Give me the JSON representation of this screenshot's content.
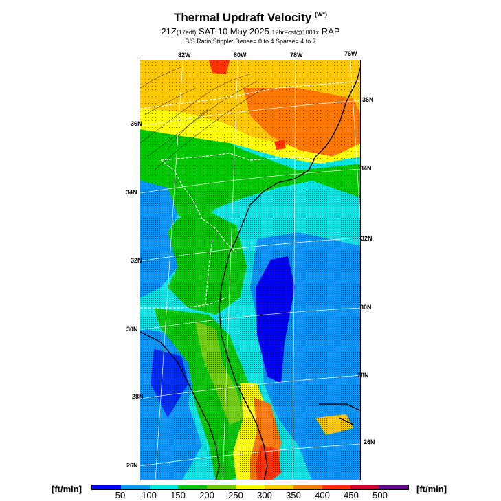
{
  "header": {
    "title": "Thermal Updraft Velocity",
    "title_unit": "(W*)",
    "valid_time": "21Z",
    "valid_local": "(17edt)",
    "date": "SAT 10 May 2025",
    "forecast": "12hrFcst@1001z",
    "model": "RAP",
    "stipple_note": "B/S Ratio Stipple:  Dense= 0 to 4  Sparse= 4 to 7"
  },
  "map": {
    "lon_labels": [
      "82W",
      "80W",
      "78W",
      "76W"
    ],
    "lat_labels_left": [
      "36N",
      "34N",
      "32N",
      "30N",
      "28N",
      "26N"
    ],
    "lat_labels_right": [
      "36N",
      "34N",
      "32N",
      "30N",
      "28N",
      "26N"
    ]
  },
  "colorbar": {
    "unit_left": "[ft/min]",
    "unit_right": "[ft/min]",
    "ticks": [
      "50",
      "100",
      "150",
      "200",
      "250",
      "300",
      "350",
      "400",
      "450",
      "500"
    ],
    "colors": [
      "#0000ff",
      "#0096ff",
      "#00e6e6",
      "#00c800",
      "#6ecc00",
      "#ffff00",
      "#ffc800",
      "#ff7800",
      "#ff3200",
      "#c80032",
      "#640096"
    ]
  }
}
